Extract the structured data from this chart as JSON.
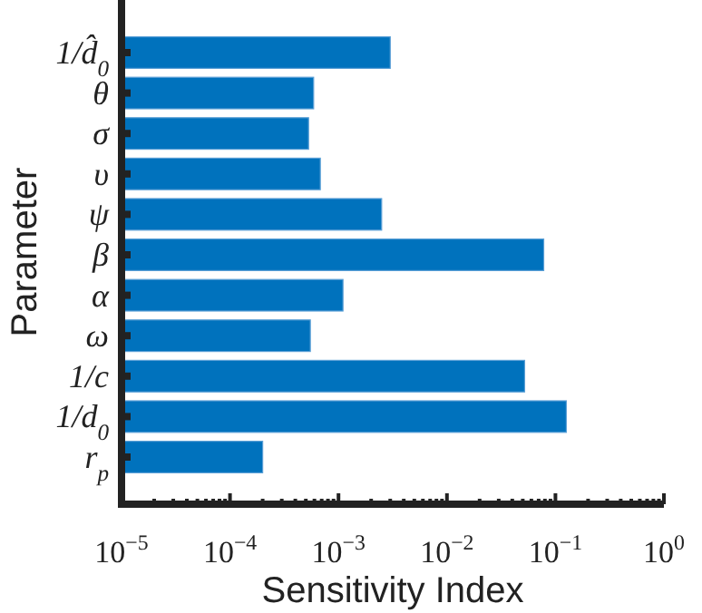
{
  "chart_data": {
    "type": "bar",
    "orientation": "horizontal",
    "log": "x",
    "xlabel": "Sensitivity Index",
    "ylabel": "Parameter",
    "categories": [
      "1/d̂$_{0}$",
      "θ",
      "σ",
      "υ",
      "ψ",
      "β",
      "α",
      "ω",
      "1/c",
      "1/d$_{0}$",
      "r$_{p}$"
    ],
    "values": [
      0.003,
      0.00059,
      0.00053,
      0.00068,
      0.0025,
      0.078,
      0.0011,
      0.00055,
      0.052,
      0.126,
      0.0002
    ],
    "color": "#0072bd",
    "xlim": [
      1e-05,
      1
    ],
    "xticks": [
      {
        "value": 1e-05,
        "label": "10$^{−5}$"
      },
      {
        "value": 2e-05,
        "label": null
      },
      {
        "value": 3e-05,
        "label": null
      },
      {
        "value": 4e-05,
        "label": null
      },
      {
        "value": 5e-05,
        "label": null
      },
      {
        "value": 6e-05,
        "label": null
      },
      {
        "value": 7e-05,
        "label": null
      },
      {
        "value": 8e-05,
        "label": null
      },
      {
        "value": 9e-05,
        "label": null
      },
      {
        "value": 0.0001,
        "label": "10$^{−4}$"
      },
      {
        "value": 0.0002,
        "label": null
      },
      {
        "value": 0.0003,
        "label": null
      },
      {
        "value": 0.0004,
        "label": null
      },
      {
        "value": 0.0005,
        "label": null
      },
      {
        "value": 0.0006,
        "label": null
      },
      {
        "value": 0.0007,
        "label": null
      },
      {
        "value": 0.0008,
        "label": null
      },
      {
        "value": 0.0009,
        "label": null
      },
      {
        "value": 0.001,
        "label": "10$^{−3}$"
      },
      {
        "value": 0.002,
        "label": null
      },
      {
        "value": 0.003,
        "label": null
      },
      {
        "value": 0.004,
        "label": null
      },
      {
        "value": 0.005,
        "label": null
      },
      {
        "value": 0.006,
        "label": null
      },
      {
        "value": 0.007,
        "label": null
      },
      {
        "value": 0.008,
        "label": null
      },
      {
        "value": 0.009,
        "label": null
      },
      {
        "value": 0.01,
        "label": "10$^{−2}$"
      },
      {
        "value": 0.02,
        "label": null
      },
      {
        "value": 0.03,
        "label": null
      },
      {
        "value": 0.04,
        "label": null
      },
      {
        "value": 0.05,
        "label": null
      },
      {
        "value": 0.06,
        "label": null
      },
      {
        "value": 0.07,
        "label": null
      },
      {
        "value": 0.08,
        "label": null
      },
      {
        "value": 0.09,
        "label": null
      },
      {
        "value": 0.1,
        "label": "10$^{−1}$"
      },
      {
        "value": 0.2,
        "label": null
      },
      {
        "value": 0.3,
        "label": null
      },
      {
        "value": 0.4,
        "label": null
      },
      {
        "value": 0.5,
        "label": null
      },
      {
        "value": 0.6,
        "label": null
      },
      {
        "value": 0.7,
        "label": null
      },
      {
        "value": 0.8,
        "label": null
      },
      {
        "value": 0.9,
        "label": null
      },
      {
        "value": 1,
        "label": "10$^{0}$"
      }
    ]
  }
}
